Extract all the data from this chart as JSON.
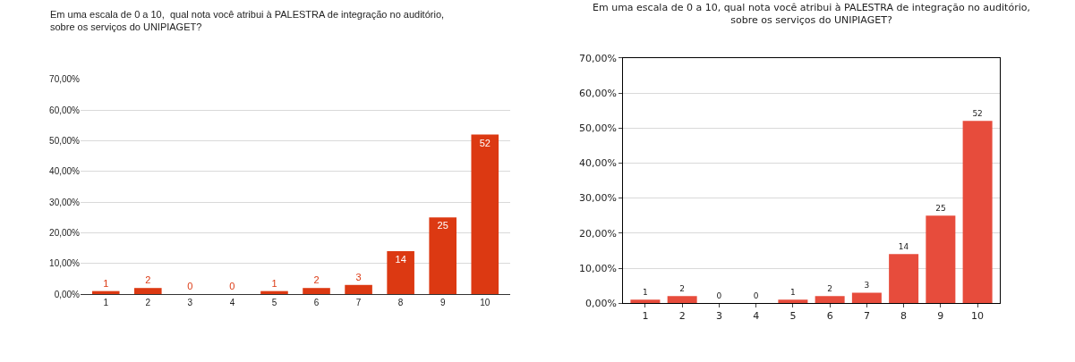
{
  "chart_data": [
    {
      "type": "bar",
      "title": "Em uma escala de 0 a 10,  qual nota você atribui à PALESTRA de integração no auditório,\nsobre os serviços do UNIPIAGET?",
      "categories": [
        "1",
        "2",
        "3",
        "4",
        "5",
        "6",
        "7",
        "8",
        "9",
        "10"
      ],
      "values": [
        1,
        2,
        0,
        0,
        1,
        2,
        3,
        14,
        25,
        52
      ],
      "color": "#dc3912",
      "ylim": [
        0,
        70
      ],
      "yticks": [
        {
          "value": 0,
          "label": "0,00%"
        },
        {
          "value": 10,
          "label": "10,00%"
        },
        {
          "value": 20,
          "label": "20,00%"
        },
        {
          "value": 30,
          "label": "30,00%"
        },
        {
          "value": 40,
          "label": "40,00%"
        },
        {
          "value": 50,
          "label": "50,00%"
        },
        {
          "value": 60,
          "label": "60,00%"
        },
        {
          "value": 70,
          "label": "70,00%"
        }
      ],
      "grid": "y",
      "data_labels": true
    },
    {
      "type": "bar",
      "title": "Em uma escala de 0 a 10, qual nota você atribui à PALESTRA de integração no auditório,\nsobre os serviços do UNIPIAGET?",
      "categories": [
        "1",
        "2",
        "3",
        "4",
        "5",
        "6",
        "7",
        "8",
        "9",
        "10"
      ],
      "values": [
        1,
        2,
        0,
        0,
        1,
        2,
        3,
        14,
        25,
        52
      ],
      "color": "#e74c3c",
      "ylim": [
        0,
        70
      ],
      "yticks": [
        {
          "value": 0,
          "label": "0,00%"
        },
        {
          "value": 10,
          "label": "10,00%"
        },
        {
          "value": 20,
          "label": "20,00%"
        },
        {
          "value": 30,
          "label": "30,00%"
        },
        {
          "value": 40,
          "label": "40,00%"
        },
        {
          "value": 50,
          "label": "50,00%"
        },
        {
          "value": 60,
          "label": "60,00%"
        },
        {
          "value": 70,
          "label": "70,00%"
        }
      ],
      "grid": "y",
      "data_labels": true
    }
  ]
}
